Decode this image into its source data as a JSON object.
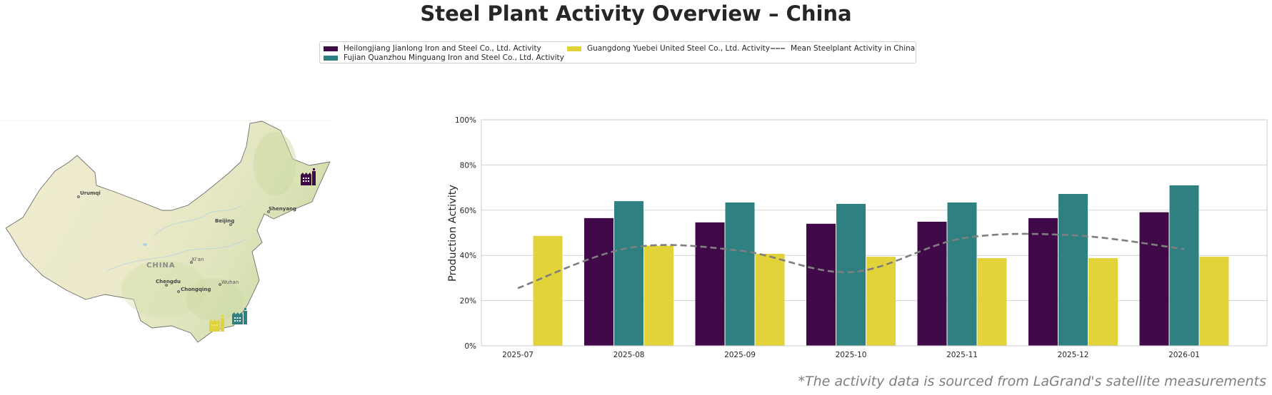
{
  "title": "Steel Plant Activity Overview – China",
  "footnote": "*The activity data is sourced from LaGrand's satellite measurements",
  "legend": {
    "items": [
      {
        "label": "Heilongjiang Jianlong Iron and Steel Co., Ltd. Activity",
        "type": "bar",
        "color": "#3f0a47"
      },
      {
        "label": "Fujian Quanzhou Minguang Iron and Steel Co., Ltd. Activity",
        "type": "bar",
        "color": "#2e8180"
      },
      {
        "label": "Guangdong Yuebei United Steel Co., Ltd. Activity",
        "type": "bar",
        "color": "#e2d33b"
      },
      {
        "label": "Mean Steelplant Activity in China",
        "type": "line",
        "color": "#7f7f7f"
      }
    ]
  },
  "map": {
    "country_label": "CHINA",
    "cities": [
      {
        "name": "Urumqi"
      },
      {
        "name": "Beijing"
      },
      {
        "name": "Shenyang"
      },
      {
        "name": "Xi'an"
      },
      {
        "name": "Chengdu"
      },
      {
        "name": "Chongqing"
      },
      {
        "name": "Wuhan"
      }
    ],
    "plant_markers": [
      {
        "plant": "Heilongjiang Jianlong Iron and Steel Co., Ltd.",
        "icon": "factory-icon",
        "color": "#3f0a47"
      },
      {
        "plant": "Fujian Quanzhou Minguang Iron and Steel Co., Ltd.",
        "icon": "factory-icon",
        "color": "#2e8180"
      },
      {
        "plant": "Guangdong Yuebei United Steel Co., Ltd.",
        "icon": "factory-icon",
        "color": "#e2d33b"
      }
    ]
  },
  "chart_data": {
    "type": "bar",
    "title": "Steel Plant Activity Overview – China",
    "xlabel": "",
    "ylabel": "Production Activity",
    "ylim": [
      0,
      100
    ],
    "yticks": [
      "0%",
      "20%",
      "40%",
      "60%",
      "80%",
      "100%"
    ],
    "ytick_values": [
      0,
      20,
      40,
      60,
      80,
      100
    ],
    "grid": "horizontal",
    "legend_position": "top-center",
    "categories": [
      "2025-07",
      "2025-08",
      "2025-09",
      "2025-10",
      "2025-11",
      "2025-12",
      "2026-01"
    ],
    "series": [
      {
        "name": "Heilongjiang Jianlong Iron and Steel Co., Ltd. Activity",
        "type": "bar",
        "color": "#3f0a47",
        "values": [
          null,
          56.5,
          54.6,
          54.0,
          54.9,
          56.5,
          59.1
        ]
      },
      {
        "name": "Fujian Quanzhou Minguang Iron and Steel Co., Ltd. Activity",
        "type": "bar",
        "color": "#2e8180",
        "values": [
          null,
          64.0,
          63.4,
          62.8,
          63.4,
          67.2,
          71.0
        ]
      },
      {
        "name": "Guangdong Yuebei United Steel Co., Ltd. Activity",
        "type": "bar",
        "color": "#e2d33b",
        "values": [
          48.6,
          44.3,
          40.7,
          39.4,
          38.8,
          38.8,
          39.4
        ]
      },
      {
        "name": "Mean Steelplant Activity in China",
        "type": "line",
        "style": "dashed",
        "color": "#7f7f7f",
        "values": [
          25.5,
          43.3,
          42.1,
          32.6,
          47.5,
          48.9,
          42.8
        ]
      }
    ]
  }
}
